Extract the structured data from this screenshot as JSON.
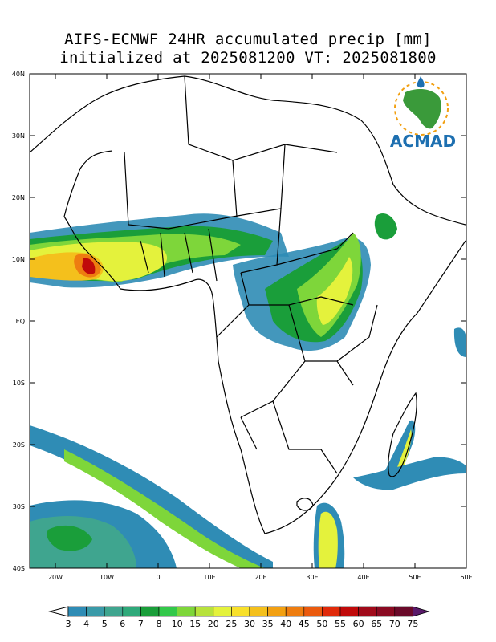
{
  "title_line1": "AIFS-ECMWF 24HR accumulated precip [mm]",
  "title_line2": "initialized at 2025081200 VT: 2025081800",
  "logo": {
    "text": "ACMAD",
    "icon": "africa-map-logo-icon"
  },
  "lat_labels": [
    "40N",
    "30N",
    "20N",
    "10N",
    "EQ",
    "10S",
    "20S",
    "30S",
    "40S"
  ],
  "lon_labels": [
    "20W",
    "10W",
    "0",
    "10E",
    "20E",
    "30E",
    "40E",
    "50E",
    "60E"
  ],
  "colorbar": {
    "labels": [
      "3",
      "4",
      "5",
      "6",
      "7",
      "8",
      "10",
      "15",
      "20",
      "25",
      "30",
      "35",
      "40",
      "45",
      "50",
      "55",
      "60",
      "65",
      "70",
      "75"
    ],
    "colors": [
      "#2f8cb5",
      "#3a9aa8",
      "#3fa58f",
      "#2fa97a",
      "#1a9e3a",
      "#33c84a",
      "#7ed63a",
      "#b7e23c",
      "#e4f23c",
      "#f8e02a",
      "#f4c01c",
      "#f2a012",
      "#ee7d10",
      "#ea5a0e",
      "#e02a0a",
      "#c00a0a",
      "#a00a1a",
      "#8a0a22",
      "#6a0a2a",
      "#5a1a6a"
    ]
  },
  "colors": {
    "land_outline": "#000000",
    "background": "#ffffff"
  }
}
